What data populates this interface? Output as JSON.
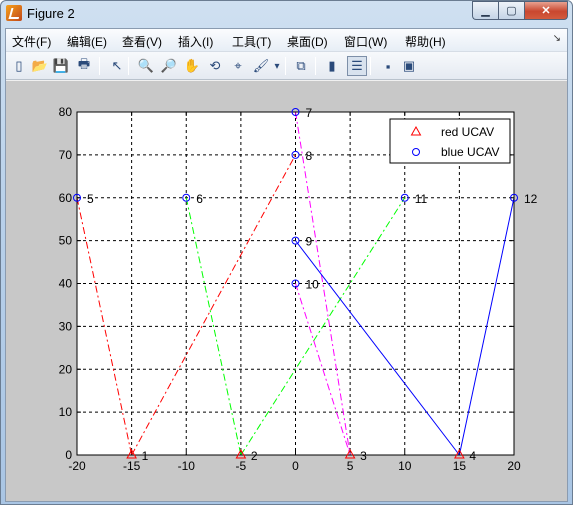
{
  "window": {
    "title": "Figure 2"
  },
  "menu": [
    "文件(F)",
    "编辑(E)",
    "查看(V)",
    "插入(I)",
    "工具(T)",
    "桌面(D)",
    "窗口(W)",
    "帮助(H)"
  ],
  "toolbar": [
    {
      "name": "new-figure-icon",
      "glyph": "▯"
    },
    {
      "name": "open-file-icon",
      "glyph": "📂"
    },
    {
      "name": "save-icon",
      "glyph": "💾"
    },
    {
      "name": "print-icon",
      "glyph": "🖶"
    },
    {
      "name": "arrow-select-icon",
      "glyph": "↖"
    },
    {
      "name": "zoom-in-icon",
      "glyph": "🔍"
    },
    {
      "name": "zoom-out-icon",
      "glyph": "🔎"
    },
    {
      "name": "pan-hand-icon",
      "glyph": "✋"
    },
    {
      "name": "rotate-3d-icon",
      "glyph": "⟲"
    },
    {
      "name": "data-cursor-icon",
      "glyph": "⌖"
    },
    {
      "name": "brush-icon",
      "glyph": "🖌"
    },
    {
      "name": "brush-dropdown-icon",
      "glyph": "▾"
    },
    {
      "name": "link-plot-icon",
      "glyph": "⧉"
    },
    {
      "name": "colorbar-icon",
      "glyph": "▮"
    },
    {
      "name": "legend-icon",
      "glyph": "☰"
    },
    {
      "name": "hide-plot-tools-icon",
      "glyph": "▪"
    },
    {
      "name": "show-plot-tools-icon",
      "glyph": "▣"
    }
  ],
  "colors": {
    "red": "#ff0000",
    "green": "#00ff00",
    "blue": "#0000ff",
    "magenta": "#ff00ff"
  },
  "chart_data": {
    "type": "scatter",
    "xlim": [
      -20,
      20
    ],
    "ylim": [
      0,
      80
    ],
    "xticks": [
      "-20",
      "-15",
      "-10",
      "-5",
      "0",
      "5",
      "10",
      "15",
      "20"
    ],
    "yticks": [
      "0",
      "10",
      "20",
      "30",
      "40",
      "50",
      "60",
      "70",
      "80"
    ],
    "grid": true,
    "legend_position": "top-right",
    "legend": [
      {
        "label": "red UCAV",
        "marker": "triangle",
        "color": "#ff0000"
      },
      {
        "label": "blue UCAV",
        "marker": "circle",
        "color": "#0000ff"
      }
    ],
    "red_points": [
      {
        "label": "1",
        "x": -15,
        "y": 0
      },
      {
        "label": "2",
        "x": -5,
        "y": 0
      },
      {
        "label": "3",
        "x": 5,
        "y": 0
      },
      {
        "label": "4",
        "x": 15,
        "y": 0
      }
    ],
    "blue_points": [
      {
        "label": "5",
        "x": -20,
        "y": 60
      },
      {
        "label": "6",
        "x": -10,
        "y": 60
      },
      {
        "label": "7",
        "x": 0,
        "y": 80
      },
      {
        "label": "8",
        "x": 0,
        "y": 70
      },
      {
        "label": "9",
        "x": 0,
        "y": 50
      },
      {
        "label": "10",
        "x": 0,
        "y": 40
      },
      {
        "label": "11",
        "x": 10,
        "y": 60
      },
      {
        "label": "12",
        "x": 20,
        "y": 60
      }
    ],
    "lines": [
      {
        "from": [
          -20,
          60
        ],
        "to": [
          -15,
          0
        ],
        "color": "#ff0000",
        "style": "dashdot"
      },
      {
        "from": [
          -15,
          0
        ],
        "to": [
          0,
          70
        ],
        "color": "#ff0000",
        "style": "dashdot"
      },
      {
        "from": [
          -10,
          60
        ],
        "to": [
          -5,
          0
        ],
        "color": "#00ff00",
        "style": "dashdot"
      },
      {
        "from": [
          -5,
          0
        ],
        "to": [
          10,
          60
        ],
        "color": "#00ff00",
        "style": "dashdot"
      },
      {
        "from": [
          0,
          80
        ],
        "to": [
          5,
          0
        ],
        "color": "#ff00ff",
        "style": "dashdot"
      },
      {
        "from": [
          0,
          40
        ],
        "to": [
          5,
          0
        ],
        "color": "#ff00ff",
        "style": "dashdot"
      },
      {
        "from": [
          0,
          50
        ],
        "to": [
          15,
          0
        ],
        "color": "#0000ff",
        "style": "solid"
      },
      {
        "from": [
          15,
          0
        ],
        "to": [
          20,
          60
        ],
        "color": "#0000ff",
        "style": "solid"
      }
    ]
  }
}
